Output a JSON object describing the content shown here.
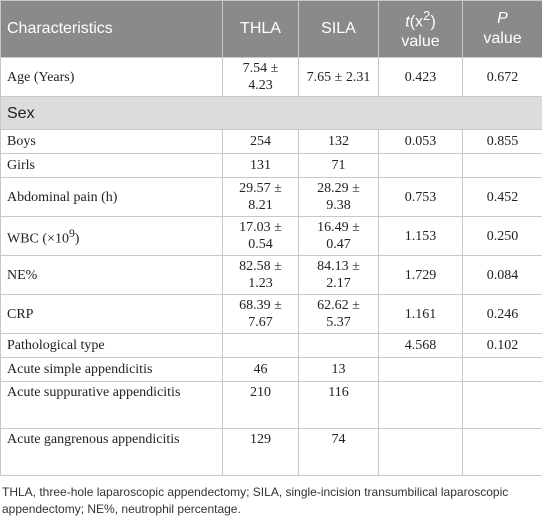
{
  "table": {
    "header": [
      "Characteristics",
      "THLA",
      "SILA",
      {
        "italic": "t",
        "text": "(x",
        "sup": "2",
        "after": ")",
        "line2": "value"
      },
      {
        "italic": "P",
        "line2": "value"
      }
    ],
    "rows": [
      [
        "Age (Years)",
        "7.54 ± 4.23",
        "7.65 ± 2.31",
        "0.423",
        "0.672"
      ],
      [
        "Sex"
      ],
      [
        "Boys",
        "254",
        "132",
        "0.053",
        "0.855"
      ],
      [
        "Girls",
        "131",
        "71",
        null,
        null
      ],
      [
        "Abdominal pain (h)",
        "29.57 ± 8.21",
        "28.29 ± 9.38",
        "0.753",
        "0.452"
      ],
      [
        {
          "text": "WBC (×10",
          "sup": "9",
          "after": ")"
        },
        "17.03 ± 0.54",
        "16.49 ± 0.47",
        "1.153",
        "0.250"
      ],
      [
        "NE%",
        "82.58 ± 1.23",
        "84.13 ± 2.17",
        "1.729",
        "0.084"
      ],
      [
        "CRP",
        "68.39 ± 7.67",
        "62.62 ± 5.37",
        "1.161",
        "0.246"
      ],
      [
        "Pathological type",
        null,
        null,
        "4.568",
        "0.102"
      ],
      [
        "Acute simple appendicitis",
        "46",
        "13",
        null,
        null
      ],
      [
        "Acute suppurative appendicitis",
        "210",
        "116",
        null,
        null
      ],
      [
        "Acute gangrenous appendicitis",
        "129",
        "74",
        null,
        null
      ]
    ]
  },
  "footnote": "THLA, three-hole laparoscopic appendectomy; SILA, single-incision transumbilical laparoscopic appendectomy; NE%, neutrophil percentage."
}
